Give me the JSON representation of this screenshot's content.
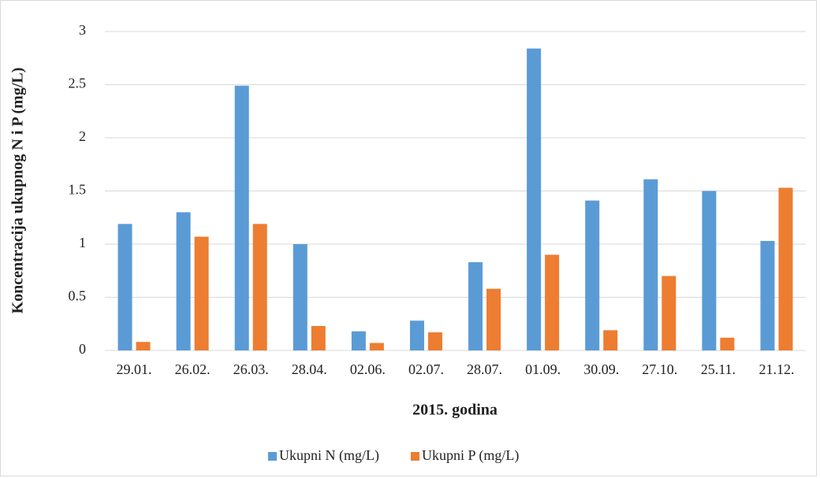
{
  "chart_data": {
    "type": "bar",
    "categories": [
      "29.01.",
      "26.02.",
      "26.03.",
      "28.04.",
      "02.06.",
      "02.07.",
      "28.07.",
      "01.09.",
      "30.09.",
      "27.10.",
      "25.11.",
      "21.12."
    ],
    "series": [
      {
        "name": "Ukupni N (mg/L)",
        "color": "#5b9bd5",
        "values": [
          1.19,
          1.3,
          2.49,
          1.0,
          0.18,
          0.28,
          0.83,
          2.84,
          1.41,
          1.61,
          1.5,
          1.03
        ]
      },
      {
        "name": "Ukupni P (mg/L)",
        "color": "#ed7d31",
        "values": [
          0.08,
          1.07,
          1.19,
          0.23,
          0.07,
          0.17,
          0.58,
          0.9,
          0.19,
          0.7,
          0.12,
          1.53
        ]
      }
    ],
    "x_label": "2015. godina",
    "y_label": "Koncentracija ukupnog N i P (mg/L)",
    "ylim": [
      0,
      3
    ],
    "yticks": [
      0,
      0.5,
      1,
      1.5,
      2,
      2.5,
      3
    ],
    "grid": true,
    "legend": "bottom"
  }
}
